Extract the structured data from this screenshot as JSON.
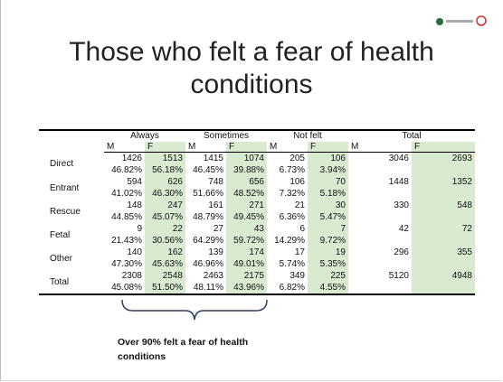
{
  "title": "Those who felt a fear of health conditions",
  "table": {
    "groups": [
      "Always",
      "Sometimes",
      "Not felt",
      "Total"
    ],
    "subheaders": [
      "M",
      "F",
      "M",
      "F",
      "M",
      "F",
      "M",
      "F"
    ],
    "rows": [
      {
        "label": "Direct",
        "cells": [
          {
            "n": 1426,
            "pct": "46.82%"
          },
          {
            "n": 1513,
            "pct": "56.18%"
          },
          {
            "n": 1415,
            "pct": "46.45%"
          },
          {
            "n": 1074,
            "pct": "39.88%"
          },
          {
            "n": 205,
            "pct": "6.73%"
          },
          {
            "n": 106,
            "pct": "3.94%"
          }
        ],
        "total": [
          3046,
          2693
        ]
      },
      {
        "label": "Entrant",
        "cells": [
          {
            "n": 594,
            "pct": "41.02%"
          },
          {
            "n": 626,
            "pct": "46.30%"
          },
          {
            "n": 748,
            "pct": "51.66%"
          },
          {
            "n": 656,
            "pct": "48.52%"
          },
          {
            "n": 106,
            "pct": "7.32%"
          },
          {
            "n": 70,
            "pct": "5.18%"
          }
        ],
        "total": [
          1448,
          1352
        ]
      },
      {
        "label": "Rescue",
        "cells": [
          {
            "n": 148,
            "pct": "44.85%"
          },
          {
            "n": 247,
            "pct": "45.07%"
          },
          {
            "n": 161,
            "pct": "48.79%"
          },
          {
            "n": 271,
            "pct": "49.45%"
          },
          {
            "n": 21,
            "pct": "6.36%"
          },
          {
            "n": 30,
            "pct": "5.47%"
          }
        ],
        "total": [
          330,
          548
        ]
      },
      {
        "label": "Fetal",
        "cells": [
          {
            "n": 9,
            "pct": "21.43%"
          },
          {
            "n": 22,
            "pct": "30.56%"
          },
          {
            "n": 27,
            "pct": "64.29%"
          },
          {
            "n": 43,
            "pct": "59.72%"
          },
          {
            "n": 6,
            "pct": "14.29%"
          },
          {
            "n": 7,
            "pct": "9.72%"
          }
        ],
        "total": [
          42,
          72
        ]
      },
      {
        "label": "Other",
        "cells": [
          {
            "n": 140,
            "pct": "47.30%"
          },
          {
            "n": 162,
            "pct": "45.63%"
          },
          {
            "n": 139,
            "pct": "46.96%"
          },
          {
            "n": 174,
            "pct": "49.01%"
          },
          {
            "n": 17,
            "pct": "5.74%"
          },
          {
            "n": 19,
            "pct": "5.35%"
          }
        ],
        "total": [
          296,
          355
        ]
      },
      {
        "label": "Total",
        "cells": [
          {
            "n": 2308,
            "pct": "45.08%"
          },
          {
            "n": 2548,
            "pct": "51.50%"
          },
          {
            "n": 2463,
            "pct": "48.11%"
          },
          {
            "n": 2175,
            "pct": "43.96%"
          },
          {
            "n": 349,
            "pct": "6.82%"
          },
          {
            "n": 225,
            "pct": "4.55%"
          }
        ],
        "total": [
          5120,
          4948
        ]
      }
    ]
  },
  "annotation": "Over 90% felt a fear of health conditions"
}
